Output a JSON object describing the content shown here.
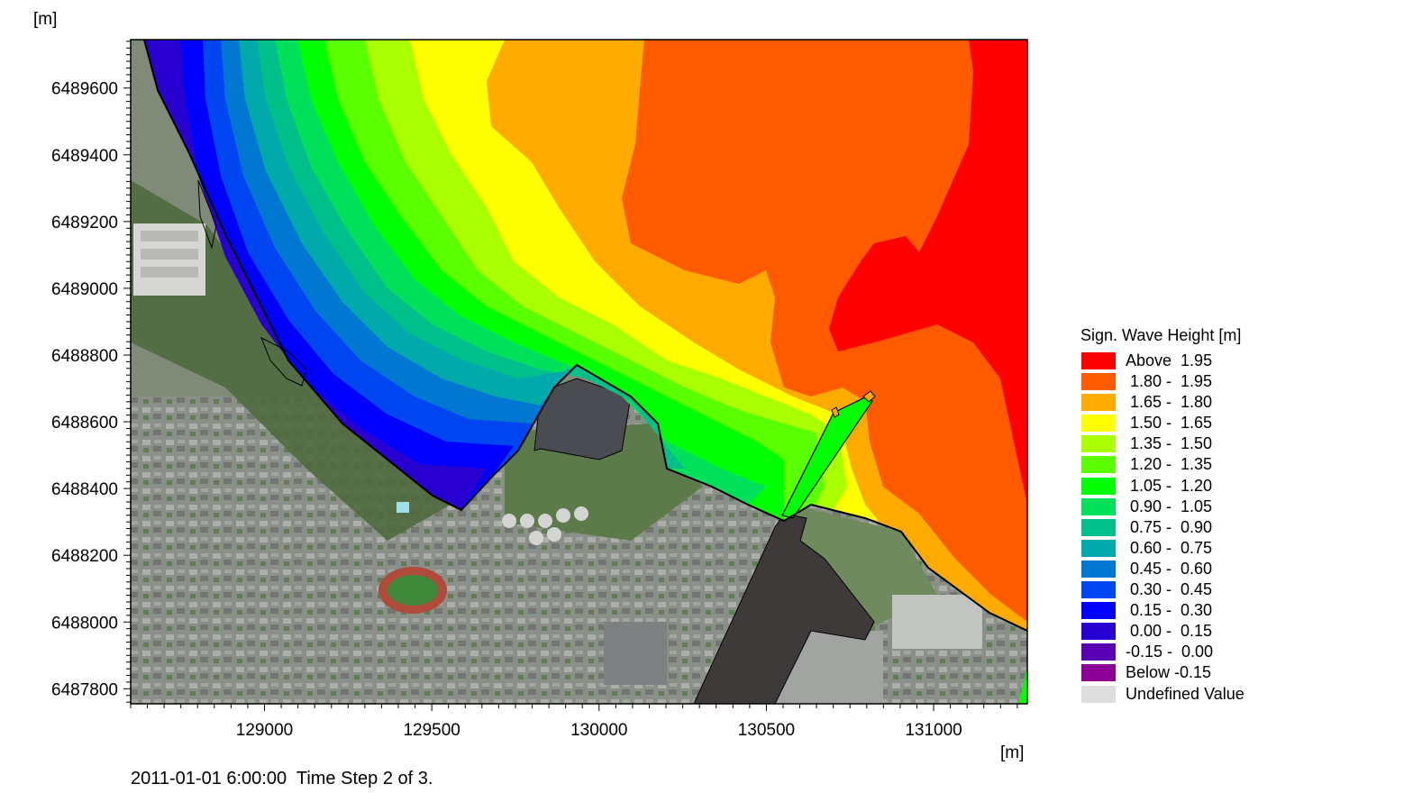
{
  "map": {
    "x_unit": "[m]",
    "y_unit": "[m]",
    "x_ticks": [
      "129000",
      "129500",
      "130000",
      "130500",
      "131000"
    ],
    "y_ticks": [
      "6489600",
      "6489400",
      "6489200",
      "6489000",
      "6488800",
      "6488600",
      "6488400",
      "6488200",
      "6488000",
      "6487800"
    ],
    "x_range": [
      128600,
      131280
    ],
    "y_range": [
      6487755,
      6489745
    ],
    "background": "satellite imagery"
  },
  "legend": {
    "title": "Sign. Wave Height [m]",
    "items": [
      {
        "label": "Above  1.95",
        "color": "#ff0000"
      },
      {
        "label": " 1.80 -  1.95",
        "color": "#ff5a00"
      },
      {
        "label": " 1.65 -  1.80",
        "color": "#ffaa00"
      },
      {
        "label": " 1.50 -  1.65",
        "color": "#ffff00"
      },
      {
        "label": " 1.35 -  1.50",
        "color": "#aaff00"
      },
      {
        "label": " 1.20 -  1.35",
        "color": "#5aff00"
      },
      {
        "label": " 1.05 -  1.20",
        "color": "#00ff00"
      },
      {
        "label": " 0.90 -  1.05",
        "color": "#00e05a"
      },
      {
        "label": " 0.75 -  0.90",
        "color": "#00c08a"
      },
      {
        "label": " 0.60 -  0.75",
        "color": "#00aaaa"
      },
      {
        "label": " 0.45 -  0.60",
        "color": "#0078d2"
      },
      {
        "label": " 0.30 -  0.45",
        "color": "#0046f0"
      },
      {
        "label": " 0.15 -  0.30",
        "color": "#0000ff"
      },
      {
        "label": " 0.00 -  0.15",
        "color": "#2800d2"
      },
      {
        "label": "-0.15 -  0.00",
        "color": "#5a00b4"
      },
      {
        "label": "Below -0.15",
        "color": "#8c0096"
      },
      {
        "label": "Undefined Value",
        "color": "#dddddd"
      }
    ]
  },
  "footer": {
    "timestamp": "2011-01-01 6:00:00  Time Step 2 of 3."
  }
}
